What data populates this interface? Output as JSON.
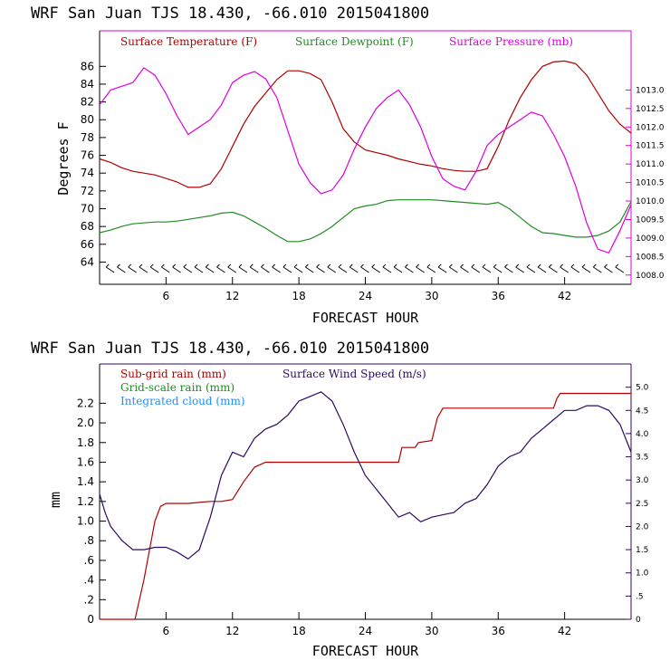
{
  "chart_data": [
    {
      "type": "line",
      "header": "WRF  San Juan TJS  18.430, -66.010  2015041800",
      "xlabel": "FORECAST HOUR",
      "ylabel": "Degrees F",
      "xlim": [
        0,
        48
      ],
      "xticks": [
        6,
        12,
        18,
        24,
        30,
        36,
        42
      ],
      "ylim": [
        61.5,
        90
      ],
      "yticks": [
        64,
        66,
        68,
        70,
        72,
        74,
        76,
        78,
        80,
        82,
        84,
        86
      ],
      "y2lim": [
        1007.75,
        1014.6
      ],
      "y2ticks": [
        1008.0,
        1008.5,
        1009.0,
        1009.5,
        1010.0,
        1010.5,
        1011.0,
        1011.5,
        1012.0,
        1012.5,
        1013.0
      ],
      "y2tick_labels": [
        "1008.0",
        "1008.5",
        "1009.0",
        "1009.5",
        "1010.0",
        "1010.5",
        "1011.0",
        "1011.5",
        "1012.0",
        "1012.5",
        "1013.0"
      ],
      "wind_barbs_row": true,
      "series": [
        {
          "name": "Surface Temperature (F)",
          "color": "#b00000",
          "axis": "left",
          "x": [
            0,
            1,
            2,
            3,
            4,
            5,
            6,
            7,
            8,
            9,
            10,
            11,
            12,
            13,
            14,
            15,
            16,
            17,
            18,
            19,
            20,
            21,
            22,
            23,
            24,
            25,
            26,
            27,
            28,
            29,
            30,
            31,
            32,
            33,
            34,
            35,
            36,
            37,
            38,
            39,
            40,
            41,
            42,
            43,
            44,
            45,
            46,
            47,
            48
          ],
          "y": [
            75.6,
            75.2,
            74.6,
            74.2,
            74.0,
            73.8,
            73.4,
            73.0,
            72.4,
            72.4,
            72.8,
            74.5,
            77.0,
            79.5,
            81.5,
            83.0,
            84.5,
            85.5,
            85.5,
            85.2,
            84.5,
            82.0,
            79.0,
            77.5,
            76.6,
            76.3,
            76.0,
            75.6,
            75.3,
            75.0,
            74.8,
            74.5,
            74.3,
            74.2,
            74.2,
            74.5,
            77.0,
            80.0,
            82.5,
            84.5,
            86.0,
            86.5,
            86.6,
            86.3,
            85.0,
            83.0,
            81.0,
            79.5,
            78.5
          ]
        },
        {
          "name": "Surface Dewpoint (F)",
          "color": "#228b22",
          "axis": "left",
          "x": [
            0,
            1,
            2,
            3,
            4,
            5,
            6,
            7,
            8,
            9,
            10,
            11,
            12,
            13,
            14,
            15,
            16,
            17,
            18,
            19,
            20,
            21,
            22,
            23,
            24,
            25,
            26,
            27,
            28,
            29,
            30,
            31,
            32,
            33,
            34,
            35,
            36,
            37,
            38,
            39,
            40,
            41,
            42,
            43,
            44,
            45,
            46,
            47,
            48
          ],
          "y": [
            67.3,
            67.6,
            68.0,
            68.3,
            68.4,
            68.5,
            68.5,
            68.6,
            68.8,
            69.0,
            69.2,
            69.5,
            69.6,
            69.2,
            68.5,
            67.8,
            67.0,
            66.3,
            66.3,
            66.6,
            67.2,
            68.0,
            69.0,
            70.0,
            70.3,
            70.5,
            70.9,
            71.0,
            71.0,
            71.0,
            71.0,
            70.9,
            70.8,
            70.7,
            70.6,
            70.5,
            70.7,
            70.0,
            69.0,
            68.0,
            67.3,
            67.2,
            67.0,
            66.8,
            66.8,
            67.0,
            67.5,
            68.5,
            70.8
          ]
        },
        {
          "name": "Surface Pressure (mb)",
          "color": "#dd00dd",
          "axis": "right",
          "x": [
            0,
            1,
            2,
            3,
            4,
            5,
            6,
            7,
            8,
            9,
            10,
            11,
            12,
            13,
            14,
            15,
            16,
            17,
            18,
            19,
            20,
            21,
            22,
            23,
            24,
            25,
            26,
            27,
            28,
            29,
            30,
            31,
            32,
            33,
            34,
            35,
            36,
            37,
            38,
            39,
            40,
            41,
            42,
            43,
            44,
            45,
            46,
            47,
            48
          ],
          "y": [
            1012.6,
            1013.0,
            1013.1,
            1013.2,
            1013.6,
            1013.4,
            1012.9,
            1012.3,
            1011.8,
            1012.0,
            1012.2,
            1012.6,
            1013.2,
            1013.4,
            1013.5,
            1013.3,
            1012.8,
            1011.9,
            1011.0,
            1010.5,
            1010.2,
            1010.3,
            1010.7,
            1011.4,
            1012.0,
            1012.5,
            1012.8,
            1013.0,
            1012.6,
            1012.0,
            1011.2,
            1010.6,
            1010.4,
            1010.3,
            1010.8,
            1011.5,
            1011.8,
            1012.0,
            1012.2,
            1012.4,
            1012.3,
            1011.8,
            1011.2,
            1010.4,
            1009.4,
            1008.7,
            1008.6,
            1009.2,
            1009.9
          ]
        }
      ]
    },
    {
      "type": "line",
      "header": "WRF  San Juan TJS  18.430, -66.010  2015041800",
      "xlabel": "FORECAST HOUR",
      "ylabel": "mm",
      "xlim": [
        0,
        48
      ],
      "xticks": [
        6,
        12,
        18,
        24,
        30,
        36,
        42
      ],
      "ylim": [
        0,
        2.6
      ],
      "yticks": [
        0,
        0.2,
        0.4,
        0.6,
        0.8,
        1.0,
        1.2,
        1.4,
        1.6,
        1.8,
        2.0,
        2.2
      ],
      "ytick_labels": [
        "0",
        ".2",
        ".4",
        ".6",
        ".8",
        "1.0",
        "1.2",
        "1.4",
        "1.6",
        "1.8",
        "2.0",
        "2.2"
      ],
      "y2lim": [
        0,
        5.5
      ],
      "y2ticks": [
        0,
        0.5,
        1.0,
        1.5,
        2.0,
        2.5,
        3.0,
        3.5,
        4.0,
        4.5,
        5.0
      ],
      "y2tick_labels": [
        "0",
        ".5",
        "1.0",
        "1.5",
        "2.0",
        "2.5",
        "3.0",
        "3.5",
        "4.0",
        "4.5",
        "5.0"
      ],
      "series": [
        {
          "name": "Sub-grid rain (mm)",
          "color": "#b00000",
          "axis": "left",
          "x": [
            0,
            1,
            2,
            3,
            3.2,
            4,
            5,
            5.5,
            6,
            8,
            9,
            10,
            11,
            12,
            13,
            14,
            15,
            18,
            21,
            24,
            27,
            27.3,
            28.5,
            28.8,
            30,
            30.5,
            31,
            35,
            38,
            41,
            41.3,
            41.6,
            45,
            48
          ],
          "y": [
            0,
            0,
            0,
            0,
            0,
            0.4,
            1.0,
            1.15,
            1.18,
            1.18,
            1.19,
            1.2,
            1.2,
            1.22,
            1.4,
            1.55,
            1.6,
            1.6,
            1.6,
            1.6,
            1.6,
            1.75,
            1.75,
            1.8,
            1.82,
            2.05,
            2.15,
            2.15,
            2.15,
            2.15,
            2.25,
            2.3,
            2.3,
            2.3
          ]
        },
        {
          "name": "Grid-scale rain (mm)",
          "color": "#228b22",
          "axis": "left",
          "x": [],
          "y": []
        },
        {
          "name": "Integrated cloud (mm)",
          "color": "#1e90ff",
          "axis": "left",
          "x": [],
          "y": []
        },
        {
          "name": "Surface Wind Speed (m/s)",
          "color": "#2a0a5e",
          "axis": "right",
          "x": [
            0,
            0.5,
            1,
            2,
            3,
            4,
            5,
            6,
            7,
            8,
            9,
            10,
            11,
            12,
            13,
            14,
            15,
            16,
            17,
            18,
            19,
            20,
            21,
            22,
            23,
            24,
            25,
            26,
            27,
            28,
            29,
            30,
            31,
            32,
            33,
            34,
            35,
            36,
            37,
            38,
            39,
            40,
            41,
            42,
            43,
            44,
            45,
            46,
            47,
            48
          ],
          "y": [
            2.7,
            2.3,
            2.0,
            1.7,
            1.5,
            1.5,
            1.55,
            1.55,
            1.45,
            1.3,
            1.5,
            2.2,
            3.1,
            3.6,
            3.5,
            3.9,
            4.1,
            4.2,
            4.4,
            4.7,
            4.8,
            4.9,
            4.7,
            4.2,
            3.6,
            3.1,
            2.8,
            2.5,
            2.2,
            2.3,
            2.1,
            2.2,
            2.25,
            2.3,
            2.5,
            2.6,
            2.9,
            3.3,
            3.5,
            3.6,
            3.9,
            4.1,
            4.3,
            4.5,
            4.5,
            4.6,
            4.6,
            4.5,
            4.2,
            3.6
          ]
        }
      ]
    }
  ]
}
